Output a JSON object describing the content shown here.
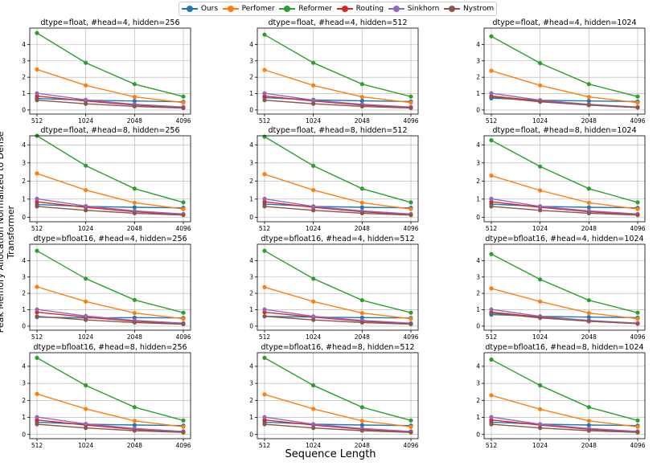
{
  "figure": {
    "xlabel": "Sequence Length",
    "ylabel": "Peak Memory Allocation Normalized to Dense Transformer"
  },
  "legend": [
    {
      "name": "Ours",
      "color": "#1f77b4"
    },
    {
      "name": "Perfomer",
      "color": "#ff7f0e"
    },
    {
      "name": "Reformer",
      "color": "#2ca02c"
    },
    {
      "name": "Routing",
      "color": "#d62728"
    },
    {
      "name": "Sinkhorn",
      "color": "#9467bd"
    },
    {
      "name": "Nystrom",
      "color": "#8c564b"
    }
  ],
  "chart_data": [
    {
      "type": "line",
      "title": "dtype=float, #head=4, hidden=256",
      "categories": [
        "512",
        "1024",
        "2048",
        "4096"
      ],
      "ylim": [
        0,
        5
      ],
      "yticks": [
        0,
        1,
        2,
        3,
        4
      ],
      "grid": true,
      "series": [
        {
          "name": "Ours",
          "values": [
            0.7,
            0.6,
            0.55,
            0.5
          ]
        },
        {
          "name": "Perfomer",
          "values": [
            2.48,
            1.5,
            0.8,
            0.45
          ]
        },
        {
          "name": "Reformer",
          "values": [
            4.7,
            2.88,
            1.58,
            0.82
          ]
        },
        {
          "name": "Routing",
          "values": [
            0.85,
            0.55,
            0.3,
            0.15
          ]
        },
        {
          "name": "Sinkhorn",
          "values": [
            1.02,
            0.62,
            0.35,
            0.18
          ]
        },
        {
          "name": "Nystrom",
          "values": [
            0.6,
            0.38,
            0.22,
            0.12
          ]
        }
      ]
    },
    {
      "type": "line",
      "title": "dtype=float, #head=4, hidden=512",
      "categories": [
        "512",
        "1024",
        "2048",
        "4096"
      ],
      "ylim": [
        0,
        5
      ],
      "yticks": [
        0,
        1,
        2,
        3,
        4
      ],
      "grid": true,
      "series": [
        {
          "name": "Ours",
          "values": [
            0.75,
            0.62,
            0.56,
            0.52
          ]
        },
        {
          "name": "Perfomer",
          "values": [
            2.45,
            1.5,
            0.8,
            0.45
          ]
        },
        {
          "name": "Reformer",
          "values": [
            4.6,
            2.88,
            1.58,
            0.82
          ]
        },
        {
          "name": "Routing",
          "values": [
            0.85,
            0.55,
            0.3,
            0.15
          ]
        },
        {
          "name": "Sinkhorn",
          "values": [
            1.02,
            0.6,
            0.35,
            0.18
          ]
        },
        {
          "name": "Nystrom",
          "values": [
            0.6,
            0.38,
            0.22,
            0.12
          ]
        }
      ]
    },
    {
      "type": "line",
      "title": "dtype=float, #head=4, hidden=1024",
      "categories": [
        "512",
        "1024",
        "2048",
        "4096"
      ],
      "ylim": [
        0,
        5
      ],
      "yticks": [
        0,
        1,
        2,
        3,
        4
      ],
      "grid": true,
      "series": [
        {
          "name": "Ours",
          "values": [
            0.72,
            0.6,
            0.55,
            0.52
          ]
        },
        {
          "name": "Perfomer",
          "values": [
            2.4,
            1.5,
            0.8,
            0.45
          ]
        },
        {
          "name": "Reformer",
          "values": [
            4.5,
            2.86,
            1.58,
            0.82
          ]
        },
        {
          "name": "Routing",
          "values": [
            0.85,
            0.55,
            0.3,
            0.15
          ]
        },
        {
          "name": "Sinkhorn",
          "values": [
            1.02,
            0.6,
            0.35,
            0.18
          ]
        },
        {
          "name": "Nystrom",
          "values": [
            0.8,
            0.5,
            0.3,
            0.15
          ]
        }
      ]
    },
    {
      "type": "line",
      "title": "dtype=float, #head=8, hidden=256",
      "categories": [
        "512",
        "1024",
        "2048",
        "4096"
      ],
      "ylim": [
        0,
        4.5
      ],
      "yticks": [
        0,
        1,
        2,
        3,
        4
      ],
      "grid": true,
      "series": [
        {
          "name": "Ours",
          "values": [
            0.7,
            0.6,
            0.55,
            0.52
          ]
        },
        {
          "name": "Perfomer",
          "values": [
            2.42,
            1.5,
            0.8,
            0.45
          ]
        },
        {
          "name": "Reformer",
          "values": [
            4.5,
            2.85,
            1.58,
            0.82
          ]
        },
        {
          "name": "Routing",
          "values": [
            0.85,
            0.55,
            0.3,
            0.15
          ]
        },
        {
          "name": "Sinkhorn",
          "values": [
            1.02,
            0.62,
            0.35,
            0.18
          ]
        },
        {
          "name": "Nystrom",
          "values": [
            0.6,
            0.38,
            0.22,
            0.12
          ]
        }
      ]
    },
    {
      "type": "line",
      "title": "dtype=float, #head=8, hidden=512",
      "categories": [
        "512",
        "1024",
        "2048",
        "4096"
      ],
      "ylim": [
        0,
        4.5
      ],
      "yticks": [
        0,
        1,
        2,
        3,
        4
      ],
      "grid": true,
      "series": [
        {
          "name": "Ours",
          "values": [
            0.72,
            0.6,
            0.55,
            0.52
          ]
        },
        {
          "name": "Perfomer",
          "values": [
            2.38,
            1.5,
            0.8,
            0.45
          ]
        },
        {
          "name": "Reformer",
          "values": [
            4.45,
            2.84,
            1.58,
            0.82
          ]
        },
        {
          "name": "Routing",
          "values": [
            0.85,
            0.55,
            0.3,
            0.15
          ]
        },
        {
          "name": "Sinkhorn",
          "values": [
            1.02,
            0.6,
            0.35,
            0.18
          ]
        },
        {
          "name": "Nystrom",
          "values": [
            0.6,
            0.38,
            0.22,
            0.12
          ]
        }
      ]
    },
    {
      "type": "line",
      "title": "dtype=float, #head=8, hidden=1024",
      "categories": [
        "512",
        "1024",
        "2048",
        "4096"
      ],
      "ylim": [
        0,
        4.5
      ],
      "yticks": [
        0,
        1,
        2,
        3,
        4
      ],
      "grid": true,
      "series": [
        {
          "name": "Ours",
          "values": [
            0.72,
            0.6,
            0.55,
            0.52
          ]
        },
        {
          "name": "Perfomer",
          "values": [
            2.3,
            1.48,
            0.8,
            0.45
          ]
        },
        {
          "name": "Reformer",
          "values": [
            4.25,
            2.8,
            1.58,
            0.82
          ]
        },
        {
          "name": "Routing",
          "values": [
            0.85,
            0.55,
            0.3,
            0.15
          ]
        },
        {
          "name": "Sinkhorn",
          "values": [
            1.02,
            0.6,
            0.35,
            0.18
          ]
        },
        {
          "name": "Nystrom",
          "values": [
            0.6,
            0.38,
            0.22,
            0.12
          ]
        }
      ]
    },
    {
      "type": "line",
      "title": "dtype=bfloat16, #head=4, hidden=256",
      "categories": [
        "512",
        "1024",
        "2048",
        "4096"
      ],
      "ylim": [
        0,
        5
      ],
      "yticks": [
        0,
        1,
        2,
        3,
        4
      ],
      "grid": true,
      "series": [
        {
          "name": "Ours",
          "values": [
            0.55,
            0.5,
            0.52,
            0.5
          ]
        },
        {
          "name": "Perfomer",
          "values": [
            2.4,
            1.5,
            0.8,
            0.45
          ]
        },
        {
          "name": "Reformer",
          "values": [
            4.6,
            2.9,
            1.6,
            0.82
          ]
        },
        {
          "name": "Routing",
          "values": [
            0.85,
            0.55,
            0.3,
            0.15
          ]
        },
        {
          "name": "Sinkhorn",
          "values": [
            1.02,
            0.62,
            0.35,
            0.18
          ]
        },
        {
          "name": "Nystrom",
          "values": [
            0.6,
            0.38,
            0.22,
            0.12
          ]
        }
      ]
    },
    {
      "type": "line",
      "title": "dtype=bfloat16, #head=4, hidden=512",
      "categories": [
        "512",
        "1024",
        "2048",
        "4096"
      ],
      "ylim": [
        0,
        5
      ],
      "yticks": [
        0,
        1,
        2,
        3,
        4
      ],
      "grid": true,
      "series": [
        {
          "name": "Ours",
          "values": [
            0.6,
            0.55,
            0.52,
            0.5
          ]
        },
        {
          "name": "Perfomer",
          "values": [
            2.38,
            1.5,
            0.8,
            0.45
          ]
        },
        {
          "name": "Reformer",
          "values": [
            4.6,
            2.9,
            1.58,
            0.82
          ]
        },
        {
          "name": "Routing",
          "values": [
            0.85,
            0.55,
            0.3,
            0.15
          ]
        },
        {
          "name": "Sinkhorn",
          "values": [
            1.02,
            0.6,
            0.35,
            0.18
          ]
        },
        {
          "name": "Nystrom",
          "values": [
            0.6,
            0.38,
            0.22,
            0.12
          ]
        }
      ]
    },
    {
      "type": "line",
      "title": "dtype=bfloat16, #head=4, hidden=1024",
      "categories": [
        "512",
        "1024",
        "2048",
        "4096"
      ],
      "ylim": [
        0,
        5
      ],
      "yticks": [
        0,
        1,
        2,
        3,
        4
      ],
      "grid": true,
      "series": [
        {
          "name": "Ours",
          "values": [
            0.7,
            0.6,
            0.55,
            0.52
          ]
        },
        {
          "name": "Perfomer",
          "values": [
            2.3,
            1.5,
            0.8,
            0.45
          ]
        },
        {
          "name": "Reformer",
          "values": [
            4.4,
            2.85,
            1.58,
            0.82
          ]
        },
        {
          "name": "Routing",
          "values": [
            0.85,
            0.55,
            0.3,
            0.15
          ]
        },
        {
          "name": "Sinkhorn",
          "values": [
            1.02,
            0.6,
            0.35,
            0.18
          ]
        },
        {
          "name": "Nystrom",
          "values": [
            0.8,
            0.5,
            0.3,
            0.15
          ]
        }
      ]
    },
    {
      "type": "line",
      "title": "dtype=bfloat16, #head=8, hidden=256",
      "categories": [
        "512",
        "1024",
        "2048",
        "4096"
      ],
      "ylim": [
        0,
        4.8
      ],
      "yticks": [
        0,
        1,
        2,
        3,
        4
      ],
      "grid": true,
      "series": [
        {
          "name": "Ours",
          "values": [
            0.72,
            0.6,
            0.55,
            0.52
          ]
        },
        {
          "name": "Perfomer",
          "values": [
            2.38,
            1.5,
            0.8,
            0.45
          ]
        },
        {
          "name": "Reformer",
          "values": [
            4.5,
            2.88,
            1.6,
            0.82
          ]
        },
        {
          "name": "Routing",
          "values": [
            0.85,
            0.55,
            0.3,
            0.15
          ]
        },
        {
          "name": "Sinkhorn",
          "values": [
            1.02,
            0.62,
            0.35,
            0.18
          ]
        },
        {
          "name": "Nystrom",
          "values": [
            0.6,
            0.38,
            0.22,
            0.12
          ]
        }
      ]
    },
    {
      "type": "line",
      "title": "dtype=bfloat16, #head=8, hidden=512",
      "categories": [
        "512",
        "1024",
        "2048",
        "4096"
      ],
      "ylim": [
        0,
        4.8
      ],
      "yticks": [
        0,
        1,
        2,
        3,
        4
      ],
      "grid": true,
      "series": [
        {
          "name": "Ours",
          "values": [
            0.72,
            0.6,
            0.55,
            0.52
          ]
        },
        {
          "name": "Perfomer",
          "values": [
            2.35,
            1.5,
            0.8,
            0.45
          ]
        },
        {
          "name": "Reformer",
          "values": [
            4.5,
            2.88,
            1.6,
            0.82
          ]
        },
        {
          "name": "Routing",
          "values": [
            0.85,
            0.55,
            0.3,
            0.15
          ]
        },
        {
          "name": "Sinkhorn",
          "values": [
            1.02,
            0.6,
            0.35,
            0.18
          ]
        },
        {
          "name": "Nystrom",
          "values": [
            0.6,
            0.38,
            0.22,
            0.12
          ]
        }
      ]
    },
    {
      "type": "line",
      "title": "dtype=bfloat16, #head=8, hidden=1024",
      "categories": [
        "512",
        "1024",
        "2048",
        "4096"
      ],
      "ylim": [
        0,
        4.8
      ],
      "yticks": [
        0,
        1,
        2,
        3,
        4
      ],
      "grid": true,
      "series": [
        {
          "name": "Ours",
          "values": [
            0.72,
            0.6,
            0.55,
            0.52
          ]
        },
        {
          "name": "Perfomer",
          "values": [
            2.3,
            1.48,
            0.8,
            0.45
          ]
        },
        {
          "name": "Reformer",
          "values": [
            4.4,
            2.88,
            1.6,
            0.82
          ]
        },
        {
          "name": "Routing",
          "values": [
            0.85,
            0.55,
            0.3,
            0.15
          ]
        },
        {
          "name": "Sinkhorn",
          "values": [
            1.02,
            0.6,
            0.35,
            0.18
          ]
        },
        {
          "name": "Nystrom",
          "values": [
            0.6,
            0.38,
            0.22,
            0.12
          ]
        }
      ]
    }
  ]
}
